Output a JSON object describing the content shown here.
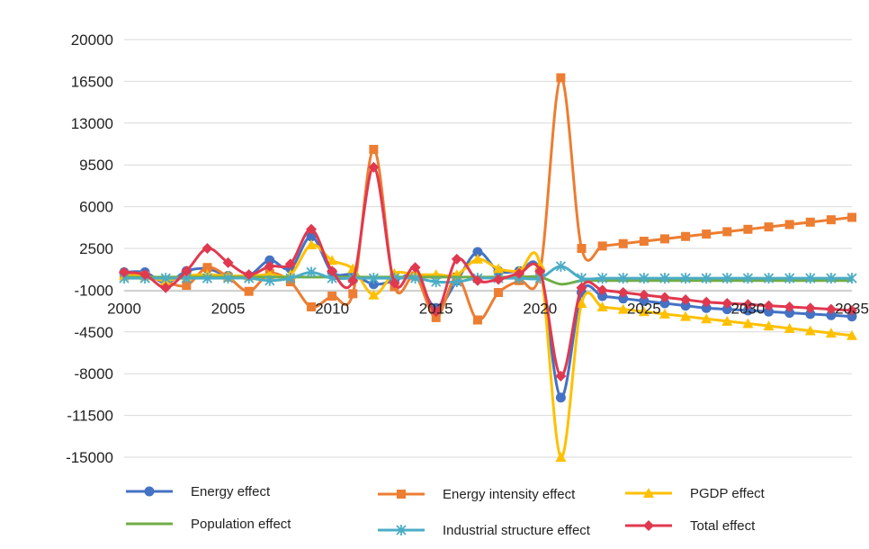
{
  "chart_data": {
    "type": "line",
    "x_start": 2000,
    "x_end": 2035,
    "xticks": [
      2000,
      2005,
      2010,
      2015,
      2020,
      2025,
      2030,
      2035
    ],
    "yticks": [
      20000,
      16500,
      13000,
      9500,
      6000,
      2500,
      -1000,
      -4500,
      -8000,
      -11500,
      -15000
    ],
    "ylim": [
      -15000,
      20000
    ],
    "xlim": [
      2000,
      2035
    ],
    "grid": "horizontal",
    "legend_position": "bottom",
    "series": [
      {
        "name": "Energy effect",
        "color": "#4472C4",
        "marker": "circle",
        "values": [
          500,
          500,
          -400,
          600,
          800,
          200,
          200,
          1500,
          800,
          3500,
          500,
          300,
          -500,
          -200,
          200,
          -2500,
          -200,
          2200,
          600,
          600,
          600,
          -10000,
          -1200,
          -1500,
          -1700,
          -1900,
          -2100,
          -2300,
          -2500,
          -2600,
          -2700,
          -2800,
          -2900,
          -3000,
          -3100,
          -3200
        ]
      },
      {
        "name": "Energy intensity effect",
        "color": "#ED7D31",
        "marker": "square",
        "values": [
          300,
          200,
          -300,
          -600,
          900,
          100,
          -1100,
          400,
          -300,
          -2400,
          -1500,
          -1300,
          10800,
          -700,
          200,
          -3300,
          100,
          -3500,
          -1200,
          -200,
          500,
          16800,
          2500,
          2700,
          2900,
          3100,
          3300,
          3500,
          3700,
          3900,
          4100,
          4300,
          4500,
          4700,
          4900,
          5100
        ]
      },
      {
        "name": "PGDP effect",
        "color": "#FFC000",
        "marker": "triangle",
        "values": [
          200,
          200,
          -200,
          200,
          300,
          200,
          200,
          300,
          300,
          2800,
          1500,
          800,
          -1400,
          400,
          300,
          300,
          300,
          1600,
          800,
          600,
          1100,
          -15000,
          -2100,
          -2400,
          -2600,
          -2800,
          -3000,
          -3200,
          -3400,
          -3600,
          -3800,
          -4000,
          -4200,
          -4400,
          -4600,
          -4800
        ]
      },
      {
        "name": "Population effect",
        "color": "#70AD47",
        "marker": "none",
        "values": [
          100,
          100,
          100,
          100,
          100,
          100,
          100,
          100,
          100,
          100,
          100,
          100,
          100,
          100,
          100,
          100,
          100,
          100,
          100,
          100,
          100,
          -500,
          -200,
          -200,
          -200,
          -200,
          -200,
          -200,
          -200,
          -200,
          -200,
          -200,
          -200,
          -200,
          -200,
          -200
        ]
      },
      {
        "name": "Industrial structure effect",
        "color": "#4BACC6",
        "marker": "star",
        "values": [
          0,
          0,
          0,
          0,
          0,
          0,
          0,
          -200,
          0,
          500,
          0,
          0,
          0,
          0,
          0,
          -300,
          -300,
          0,
          0,
          0,
          0,
          1000,
          0,
          0,
          0,
          0,
          0,
          0,
          0,
          0,
          0,
          0,
          0,
          0,
          0,
          0
        ]
      },
      {
        "name": "Total effect",
        "color": "#E0394F",
        "marker": "diamond",
        "values": [
          500,
          300,
          -800,
          600,
          2500,
          1300,
          300,
          1000,
          1200,
          4100,
          600,
          -200,
          9300,
          -400,
          900,
          -2800,
          1600,
          -200,
          -100,
          400,
          600,
          -8200,
          -800,
          -1000,
          -1200,
          -1400,
          -1600,
          -1800,
          -2000,
          -2100,
          -2200,
          -2300,
          -2400,
          -2500,
          -2600,
          -2700
        ]
      }
    ]
  }
}
